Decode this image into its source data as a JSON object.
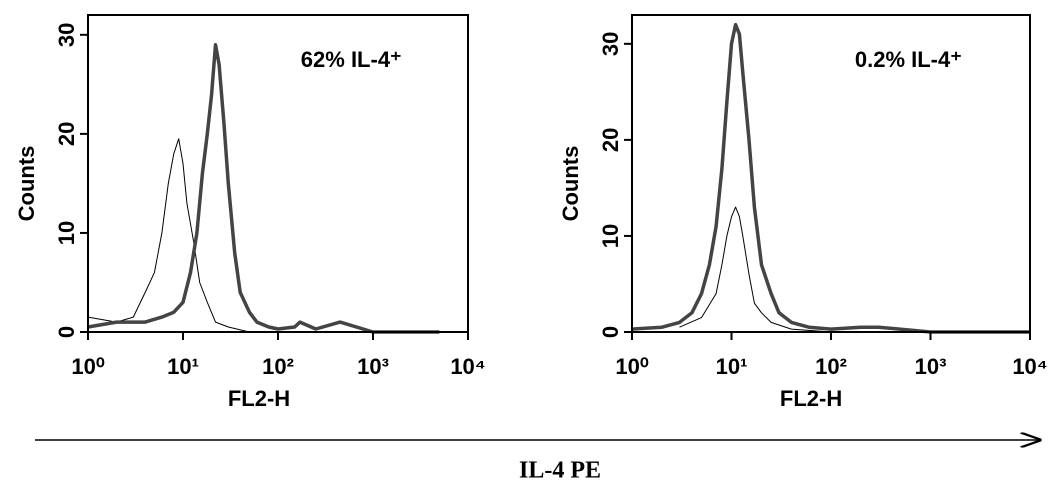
{
  "chart_data": [
    {
      "type": "line",
      "annotation": "62% IL-4⁺",
      "xlabel": "FL2-H",
      "ylabel": "Counts",
      "xlog": true,
      "xlim": [
        1,
        10000
      ],
      "ylim": [
        0,
        32
      ],
      "xticks": [
        {
          "value": 1,
          "label": "10⁰"
        },
        {
          "value": 10,
          "label": "10¹"
        },
        {
          "value": 100,
          "label": "10²"
        },
        {
          "value": 1000,
          "label": "10³"
        },
        {
          "value": 10000,
          "label": "10⁴"
        }
      ],
      "yticks": [
        0,
        10,
        20,
        30
      ],
      "series": [
        {
          "color": "#000000",
          "line_width": 1,
          "x": [
            1,
            2,
            3,
            4,
            5,
            6,
            7,
            8,
            9,
            10,
            11,
            13,
            15,
            18,
            22,
            30,
            50,
            100,
            1000,
            5000
          ],
          "values": [
            1.5,
            1,
            1.5,
            4,
            6,
            10,
            15,
            18,
            19.5,
            17,
            13,
            9,
            5,
            3,
            1,
            0.5,
            0,
            0,
            0,
            0
          ]
        },
        {
          "color": "#444444",
          "line_width": 3.5,
          "x": [
            1,
            2,
            4,
            6,
            8,
            10,
            12,
            14,
            16,
            18,
            20,
            22,
            24,
            27,
            30,
            35,
            40,
            50,
            60,
            80,
            100,
            150,
            170,
            250,
            450,
            1000,
            5000
          ],
          "values": [
            0.5,
            1,
            1,
            1.5,
            2,
            3,
            6,
            10,
            16,
            20,
            24,
            29,
            27,
            21,
            15,
            8,
            4,
            2,
            1,
            0.5,
            0.3,
            0.5,
            1,
            0.3,
            1,
            0,
            0
          ]
        }
      ]
    },
    {
      "type": "line",
      "annotation": "0.2% IL-4⁺",
      "xlabel": "FL2-H",
      "ylabel": "Counts",
      "xlog": true,
      "xlim": [
        1,
        10000
      ],
      "ylim": [
        0,
        33
      ],
      "xticks": [
        {
          "value": 1,
          "label": "10⁰"
        },
        {
          "value": 10,
          "label": "10¹"
        },
        {
          "value": 100,
          "label": "10²"
        },
        {
          "value": 1000,
          "label": "10³"
        },
        {
          "value": 10000,
          "label": "10⁴"
        }
      ],
      "yticks": [
        0,
        10,
        20,
        30
      ],
      "series": [
        {
          "color": "#000000",
          "line_width": 1,
          "x": [
            3,
            5,
            7,
            8,
            9,
            10,
            11,
            12,
            13,
            15,
            17,
            20,
            25,
            40,
            100
          ],
          "values": [
            0.5,
            1.5,
            4,
            7,
            10,
            12,
            13,
            12,
            10,
            6,
            3,
            2,
            1,
            0.3,
            0
          ]
        },
        {
          "color": "#444444",
          "line_width": 3.5,
          "x": [
            1,
            2,
            3,
            4,
            5,
            6,
            7,
            8,
            9,
            10,
            11,
            12,
            13,
            15,
            17,
            20,
            25,
            30,
            40,
            60,
            100,
            200,
            300,
            1000,
            10000
          ],
          "values": [
            0.3,
            0.5,
            1,
            2,
            4,
            7,
            11,
            17,
            24,
            30,
            32,
            31,
            27,
            20,
            13,
            7,
            4,
            2,
            1,
            0.5,
            0.3,
            0.5,
            0.5,
            0,
            0
          ]
        }
      ]
    }
  ],
  "footer_label": "IL-4 PE"
}
